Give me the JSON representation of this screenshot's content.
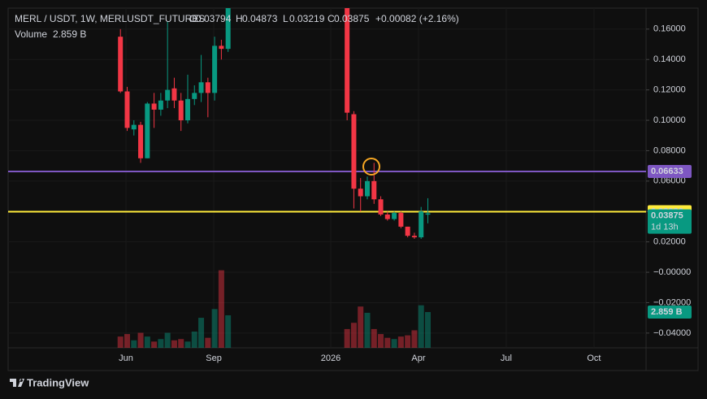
{
  "chart_data": {
    "type": "candlestick",
    "title": "MERL / USDT, 1W, MERLUSDT_FUTURES",
    "ohlc_labels": [
      "O",
      "H",
      "L",
      "C"
    ],
    "change_label": "+0.00082 (+2.16%)",
    "volume_title": "Volume",
    "volume_label": "2.859 B",
    "countdown": "1d 13h",
    "brand": "TradingView",
    "up_color": "#089981",
    "down_color": "#f23645",
    "grid": true,
    "x": [
      4.81,
      5.04,
      5.27,
      5.5,
      5.73,
      5.96,
      6.19,
      6.42,
      6.65,
      6.88,
      7.11,
      7.34,
      7.57,
      7.8,
      8.03,
      8.26,
      8.49,
      12.56,
      12.79,
      13.02,
      13.25,
      13.48,
      13.71,
      13.94,
      14.17,
      14.4,
      14.63,
      14.86,
      15.09,
      15.32
    ],
    "open": [
      0.155,
      0.119,
      0.094,
      0.097,
      0.075,
      0.111,
      0.107,
      0.113,
      0.121,
      0.113,
      0.1,
      0.114,
      0.118,
      0.125,
      0.118,
      0.149,
      0.147,
      0.185,
      0.104,
      0.055,
      0.05,
      0.06,
      0.048,
      0.038,
      0.035,
      0.039,
      0.03,
      0.024,
      0.023,
      0.03794
    ],
    "high": [
      0.16,
      0.122,
      0.1,
      0.099,
      0.112,
      0.118,
      0.118,
      0.165,
      0.128,
      0.118,
      0.13,
      0.123,
      0.143,
      0.128,
      0.155,
      0.153,
      0.18,
      0.2,
      0.106,
      0.062,
      0.063,
      0.072,
      0.05,
      0.04,
      0.04,
      0.04,
      0.03,
      0.026,
      0.043,
      0.04873
    ],
    "low": [
      0.118,
      0.093,
      0.09,
      0.072,
      0.075,
      0.095,
      0.103,
      0.108,
      0.108,
      0.093,
      0.098,
      0.11,
      0.112,
      0.102,
      0.113,
      0.14,
      0.145,
      0.1,
      0.042,
      0.04,
      0.048,
      0.045,
      0.037,
      0.034,
      0.034,
      0.029,
      0.023,
      0.022,
      0.022,
      0.03219
    ],
    "close": [
      0.119,
      0.095,
      0.097,
      0.075,
      0.111,
      0.107,
      0.113,
      0.12,
      0.113,
      0.1,
      0.114,
      0.118,
      0.125,
      0.118,
      0.149,
      0.147,
      0.175,
      0.105,
      0.055,
      0.05,
      0.06,
      0.048,
      0.038,
      0.035,
      0.039,
      0.03,
      0.024,
      0.023,
      0.04,
      0.03875
    ],
    "volume": [
      0.9,
      1.1,
      0.6,
      1.2,
      0.9,
      0.5,
      0.7,
      1.2,
      0.6,
      0.7,
      0.5,
      1.3,
      2.4,
      0.8,
      3.1,
      6.2,
      2.6,
      1.5,
      2.0,
      3.3,
      2.8,
      1.5,
      1.1,
      0.8,
      0.7,
      0.9,
      1.0,
      1.4,
      3.4,
      2.859
    ],
    "levels": [
      {
        "value": 0.06633,
        "color": "#7e57c2"
      },
      {
        "value": 0.03986,
        "color": "#ffeb3b"
      }
    ],
    "xlim": [
      0.97,
      22.78
    ],
    "xticks": [
      {
        "value": 5,
        "label": "Jun"
      },
      {
        "value": 8,
        "label": "Sep"
      },
      {
        "value": 12,
        "label": "2026"
      },
      {
        "value": 15,
        "label": "Apr"
      },
      {
        "value": 18,
        "label": "Jul"
      },
      {
        "value": 21,
        "label": "Oct"
      }
    ],
    "ylim": [
      -0.0497,
      0.1738
    ],
    "yticks": [
      {
        "value": 0.16,
        "label": "0.16000"
      },
      {
        "value": 0.14,
        "label": "0.14000"
      },
      {
        "value": 0.12,
        "label": "0.12000"
      },
      {
        "value": 0.1,
        "label": "0.10000"
      },
      {
        "value": 0.08,
        "label": "0.08000"
      },
      {
        "value": 0.06,
        "label": "0.06000"
      },
      {
        "value": 0.04,
        "label": "0.04000"
      },
      {
        "value": 0.02,
        "label": "0.02000"
      },
      {
        "value": 0,
        "label": "−0.00000"
      },
      {
        "value": -0.02,
        "label": "−0.02000"
      },
      {
        "value": -0.04,
        "label": "−0.04000"
      }
    ]
  }
}
